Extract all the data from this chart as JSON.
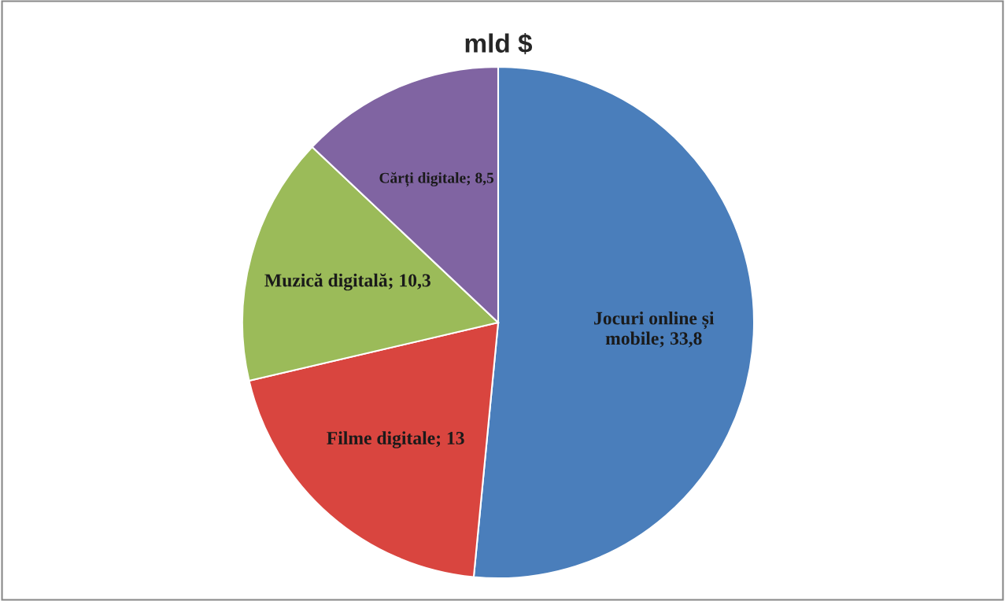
{
  "chart_data": {
    "type": "pie",
    "title": "mld $",
    "categories": [
      "Jocuri online și mobile",
      "Filme digitale",
      "Muzică digitală",
      "Cărți digitale"
    ],
    "values": [
      33.8,
      13,
      10.3,
      8.5
    ],
    "value_labels": [
      "33,8",
      "13",
      "10,3",
      "8,5"
    ],
    "colors": [
      "#4a7ebb",
      "#d9453f",
      "#9bbb59",
      "#8064a2"
    ]
  }
}
